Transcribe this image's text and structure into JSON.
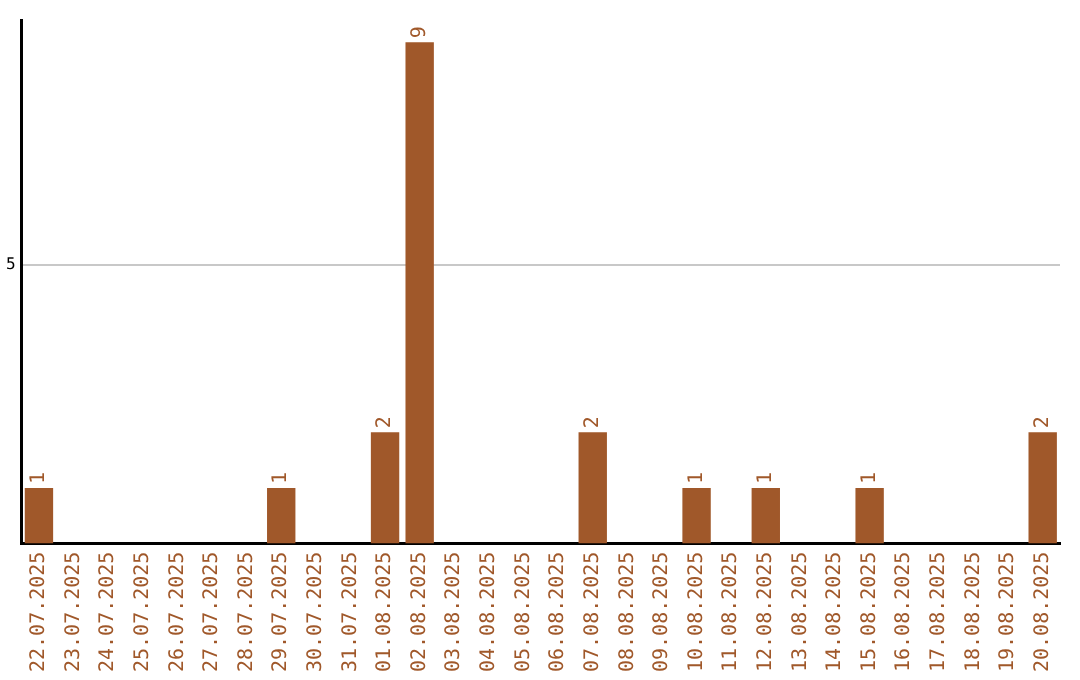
{
  "chart_data": {
    "type": "bar",
    "categories": [
      "22.07.2025",
      "23.07.2025",
      "24.07.2025",
      "25.07.2025",
      "26.07.2025",
      "27.07.2025",
      "28.07.2025",
      "29.07.2025",
      "30.07.2025",
      "31.07.2025",
      "01.08.2025",
      "02.08.2025",
      "03.08.2025",
      "04.08.2025",
      "05.08.2025",
      "06.08.2025",
      "07.08.2025",
      "08.08.2025",
      "09.08.2025",
      "10.08.2025",
      "11.08.2025",
      "12.08.2025",
      "13.08.2025",
      "14.08.2025",
      "15.08.2025",
      "16.08.2025",
      "17.08.2025",
      "18.08.2025",
      "19.08.2025",
      "20.08.2025"
    ],
    "values": [
      1,
      0,
      0,
      0,
      0,
      0,
      0,
      1,
      0,
      0,
      2,
      9,
      0,
      0,
      0,
      0,
      2,
      0,
      0,
      1,
      0,
      1,
      0,
      0,
      1,
      0,
      0,
      0,
      0,
      2
    ],
    "value_labels": [
      "1",
      null,
      null,
      null,
      null,
      null,
      null,
      "1",
      null,
      null,
      "2",
      "9",
      null,
      null,
      null,
      null,
      "2",
      null,
      null,
      "1",
      null,
      "1",
      null,
      null,
      "1",
      null,
      null,
      null,
      null,
      "2"
    ],
    "color": "#a0582a",
    "ylim": [
      0,
      9.4
    ],
    "yticks": [
      5
    ],
    "grid": "y"
  }
}
